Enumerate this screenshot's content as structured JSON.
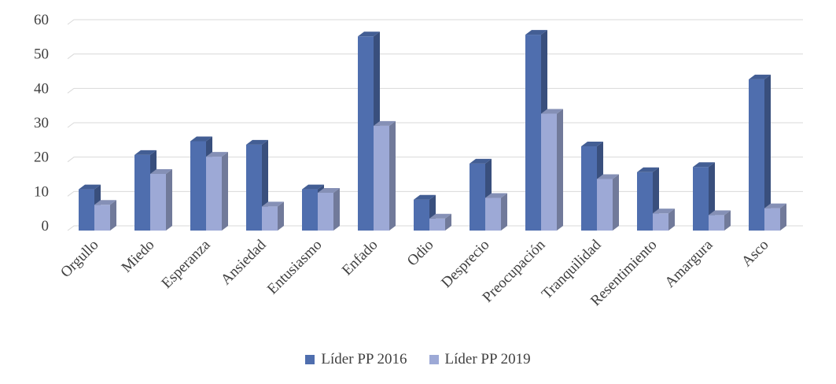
{
  "chart_data": {
    "type": "bar",
    "title": "",
    "xlabel": "",
    "ylabel": "",
    "ylim": [
      0,
      60
    ],
    "yticks": [
      0,
      10,
      20,
      30,
      40,
      50,
      60
    ],
    "grid": true,
    "legend_position": "bottom",
    "categories": [
      "Orgullo",
      "Miedo",
      "Esperanza",
      "Ansiedad",
      "Entusiasmo",
      "Enfado",
      "Odio",
      "Desprecio",
      "Preocupación",
      "Tranquilidad",
      "Resentimiento",
      "Amargura",
      "Asco"
    ],
    "series": [
      {
        "name": "Líder PP 2016",
        "color": "#4F6EAE",
        "values": [
          12,
          22,
          26,
          25,
          12,
          56.5,
          9,
          19.5,
          57,
          24.5,
          17,
          18.5,
          44
        ]
      },
      {
        "name": "Líder PP 2019",
        "color": "#9DA9D6",
        "values": [
          7.5,
          16.5,
          21.5,
          7,
          11,
          30.5,
          3.5,
          9.5,
          34,
          15,
          5,
          4.5,
          6.5
        ]
      }
    ]
  }
}
